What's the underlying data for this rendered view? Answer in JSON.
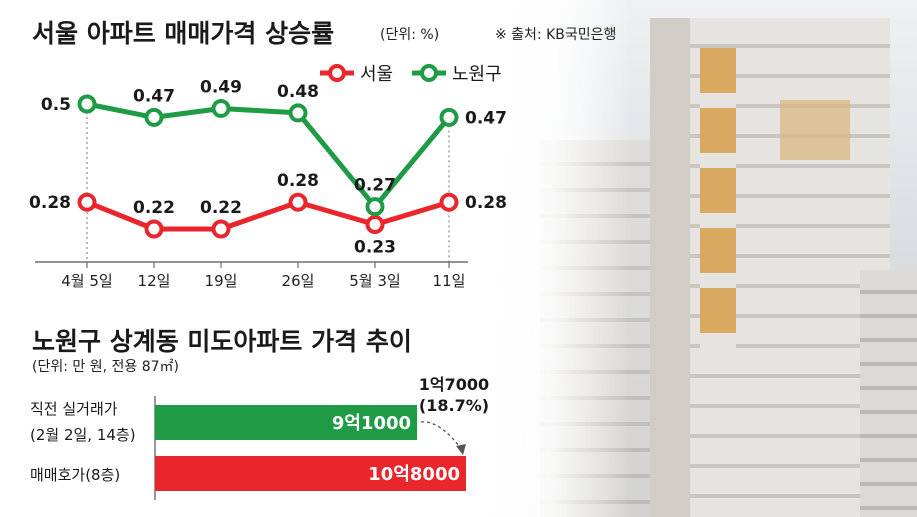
{
  "line_chart_title": "서울 아파트 매매가격 상승률",
  "line_chart_unit": "(단위: %)",
  "source": "※ 출처: KB국민은행",
  "bar_chart_title": "노원구 상계동 미도아파트 가격 추이",
  "bar_chart_unit": "(단위: 만 원, 전용 87㎡)",
  "colors": {
    "seoul": "#e8262b",
    "nowon": "#1f9b45"
  },
  "chart_data": [
    {
      "type": "line",
      "title": "서울 아파트 매매가격 상승률",
      "x": [
        "4월 5일",
        "12일",
        "19일",
        "26일",
        "5월 3일",
        "11일"
      ],
      "series": [
        {
          "name": "서울",
          "values": [
            0.28,
            0.22,
            0.22,
            0.28,
            0.23,
            0.28
          ]
        },
        {
          "name": "노원구",
          "values": [
            0.5,
            0.47,
            0.49,
            0.48,
            0.27,
            0.47
          ]
        }
      ],
      "legend_position": "top-right"
    },
    {
      "type": "bar",
      "orientation": "horizontal",
      "title": "노원구 상계동 미도아파트 가격 추이",
      "categories": [
        [
          "직전 실거래가",
          "(2월 2일, 14층)"
        ],
        [
          "매매호가(8층)"
        ]
      ],
      "values": [
        91000,
        108000
      ],
      "value_labels": [
        "9억1000",
        "10억8000"
      ],
      "annotation": [
        "1억7000",
        "(18.7%)"
      ]
    }
  ]
}
